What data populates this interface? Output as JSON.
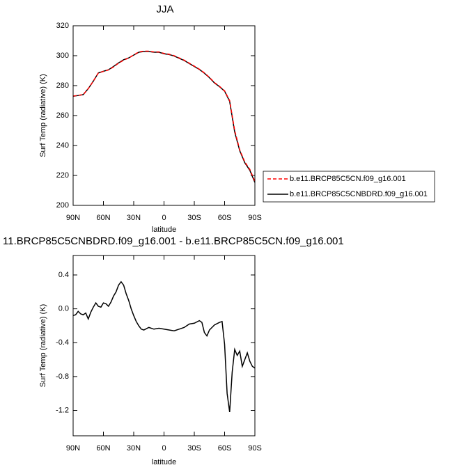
{
  "chart_data": [
    {
      "type": "line",
      "title": "JJA",
      "y_label": "Surf Temp (radiative) (K)",
      "x_label": "latitude",
      "xlim": [
        90,
        -90
      ],
      "ylim": [
        200,
        320
      ],
      "xticks": [
        {
          "value": 90,
          "label": "90N"
        },
        {
          "value": 60,
          "label": "60N"
        },
        {
          "value": 30,
          "label": "30N"
        },
        0,
        {
          "value": -30,
          "label": "30S"
        },
        {
          "value": -60,
          "label": "60S"
        },
        {
          "value": -90,
          "label": "90S"
        }
      ],
      "yticks": [
        200,
        220,
        240,
        260,
        280,
        300,
        320
      ],
      "legend": "right",
      "x": [
        90,
        85,
        80,
        75,
        70,
        65,
        60,
        55,
        50,
        45,
        40,
        35,
        30,
        25,
        20,
        15,
        10,
        5,
        0,
        -5,
        -10,
        -15,
        -20,
        -25,
        -30,
        -35,
        -40,
        -45,
        -50,
        -55,
        -60,
        -65,
        -70,
        -75,
        -80,
        -85,
        -90
      ],
      "series": [
        {
          "name": "b.e11.BRCP85C5CN.f09_g16.001",
          "color": "#ff0000",
          "dashed": true,
          "values": [
            273,
            273.5,
            274,
            278,
            283,
            288.5,
            289.5,
            290.5,
            292.5,
            295,
            297,
            298.5,
            300.5,
            302.5,
            303,
            303,
            302.5,
            302.5,
            301.5,
            301,
            300,
            298.5,
            297,
            295,
            293,
            291,
            288.5,
            285.5,
            282,
            279.5,
            276.5,
            270,
            250,
            237,
            229,
            224,
            216
          ]
        },
        {
          "name": "b.e11.BRCP85C5CNBDRD.f09_g16.001",
          "color": "#000000",
          "dashed": false,
          "values": [
            272.9,
            273.4,
            274,
            278,
            283,
            288.5,
            289.6,
            290.6,
            292.8,
            295.2,
            297.3,
            298.5,
            300.4,
            302.3,
            302.8,
            302.8,
            302.3,
            302.3,
            301.3,
            300.8,
            299.8,
            298.3,
            296.8,
            294.8,
            292.8,
            290.8,
            288.3,
            285.3,
            281.8,
            279.3,
            276.3,
            269.5,
            249,
            236.5,
            228.5,
            223.4,
            215.3
          ]
        }
      ]
    },
    {
      "type": "line",
      "title": "11.BRCP85C5CNBDRD.f09_g16.001 - b.e11.BRCP85C5CN.f09_g16.001",
      "y_label": "Surf Temp (radiative) (K)",
      "x_label": "latitude",
      "xlim": [
        90,
        -90
      ],
      "ylim": [
        -1.5,
        0.63
      ],
      "xticks": [
        {
          "value": 90,
          "label": "90N"
        },
        {
          "value": 60,
          "label": "60N"
        },
        {
          "value": 30,
          "label": "30N"
        },
        0,
        {
          "value": -30,
          "label": "30S"
        },
        {
          "value": -60,
          "label": "60S"
        },
        {
          "value": -90,
          "label": "90S"
        }
      ],
      "yticks": [
        0.4,
        {
          "value": 0,
          "label": "0.0"
        },
        -0.4,
        -0.8,
        -1.2
      ],
      "x": [
        90,
        87.5,
        85,
        82.5,
        80,
        77.5,
        75,
        72.5,
        70,
        67.5,
        65,
        62.5,
        60,
        57.5,
        55,
        52.5,
        50,
        47.5,
        45,
        42.5,
        40,
        37.5,
        35,
        32.5,
        30,
        27.5,
        25,
        22.5,
        20,
        15,
        10,
        5,
        0,
        -5,
        -10,
        -15,
        -20,
        -25,
        -30,
        -35,
        -37.5,
        -40,
        -42.5,
        -45,
        -50,
        -55,
        -57.5,
        -60,
        -62.5,
        -65,
        -67.5,
        -70,
        -72.5,
        -75,
        -77.5,
        -80,
        -82.5,
        -85,
        -87.5,
        -90
      ],
      "series": [
        {
          "name": null,
          "color": "#000000",
          "dashed": false,
          "values": [
            -0.08,
            -0.07,
            -0.03,
            -0.06,
            -0.07,
            -0.05,
            -0.12,
            -0.04,
            0.02,
            0.07,
            0.03,
            0.02,
            0.07,
            0.06,
            0.03,
            0.08,
            0.15,
            0.2,
            0.28,
            0.32,
            0.28,
            0.18,
            0.1,
            0.0,
            -0.08,
            -0.15,
            -0.2,
            -0.24,
            -0.25,
            -0.22,
            -0.24,
            -0.23,
            -0.24,
            -0.25,
            -0.26,
            -0.24,
            -0.22,
            -0.18,
            -0.17,
            -0.14,
            -0.16,
            -0.28,
            -0.32,
            -0.25,
            -0.19,
            -0.16,
            -0.15,
            -0.42,
            -1.0,
            -1.22,
            -0.75,
            -0.48,
            -0.55,
            -0.5,
            -0.68,
            -0.6,
            -0.52,
            -0.62,
            -0.68,
            -0.7
          ]
        }
      ]
    }
  ]
}
